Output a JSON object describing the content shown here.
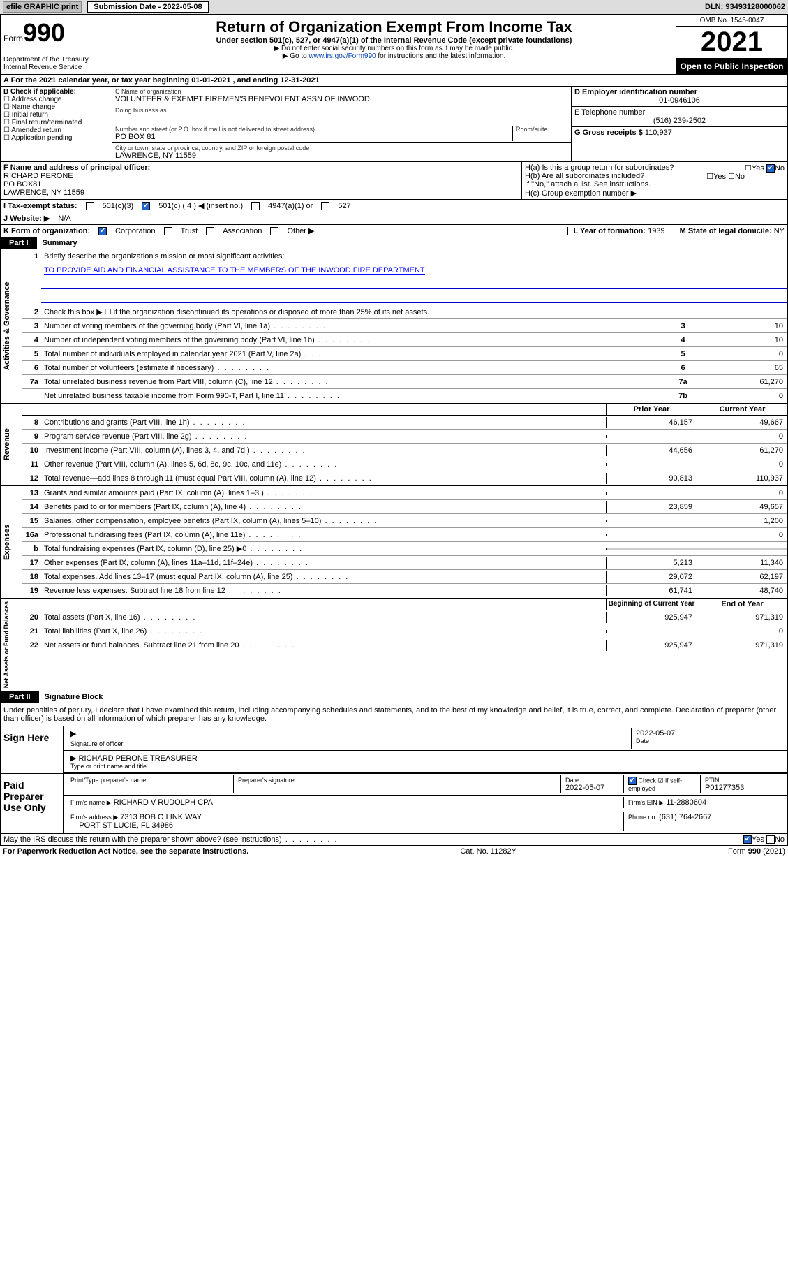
{
  "topbar": {
    "efile": "efile GRAPHIC print",
    "sub_label": "Submission Date - 2022-05-08",
    "dln": "DLN: 93493128000062"
  },
  "header": {
    "form_word": "Form",
    "form_num": "990",
    "dept": "Department of the Treasury\nInternal Revenue Service",
    "title": "Return of Organization Exempt From Income Tax",
    "sub": "Under section 501(c), 527, or 4947(a)(1) of the Internal Revenue Code (except private foundations)",
    "note1": "▶ Do not enter social security numbers on this form as it may be made public.",
    "note2_pre": "▶ Go to ",
    "note2_link": "www.irs.gov/Form990",
    "note2_post": " for instructions and the latest information.",
    "omb": "OMB No. 1545-0047",
    "year": "2021",
    "open": "Open to Public Inspection"
  },
  "row_a": "A For the 2021 calendar year, or tax year beginning 01-01-2021   , and ending 12-31-2021",
  "section_b": {
    "title": "B Check if applicable:",
    "opts": [
      "Address change",
      "Name change",
      "Initial return",
      "Final return/terminated",
      "Amended return",
      "Application pending"
    ]
  },
  "section_c": {
    "name_lbl": "C Name of organization",
    "name": "VOLUNTEER & EXEMPT FIREMEN'S BENEVOLENT ASSN OF INWOOD",
    "dba_lbl": "Doing business as",
    "addr_lbl": "Number and street (or P.O. box if mail is not delivered to street address)",
    "room_lbl": "Room/suite",
    "addr": "PO BOX 81",
    "city_lbl": "City or town, state or province, country, and ZIP or foreign postal code",
    "city": "LAWRENCE, NY  11559"
  },
  "section_d": {
    "lbl": "D Employer identification number",
    "val": "01-0946106"
  },
  "section_e": {
    "lbl": "E Telephone number",
    "val": "(516) 239-2502"
  },
  "section_g": {
    "lbl": "G Gross receipts $",
    "val": "110,937"
  },
  "section_f": {
    "lbl": "F  Name and address of principal officer:",
    "name": "RICHARD PERONE",
    "addr1": "PO BOX81",
    "addr2": "LAWRENCE, NY  11559"
  },
  "section_h": {
    "ha": "H(a)  Is this a group return for subordinates?",
    "ha_yes": "Yes",
    "ha_no": "No",
    "hb": "H(b)  Are all subordinates included?",
    "hb_yes": "Yes",
    "hb_no": "No",
    "hb_note": "If \"No,\" attach a list. See instructions.",
    "hc": "H(c)  Group exemption number ▶"
  },
  "row_i": {
    "lbl": "I   Tax-exempt status:",
    "o1": "501(c)(3)",
    "o2": "501(c) ( 4 ) ◀ (insert no.)",
    "o3": "4947(a)(1) or",
    "o4": "527"
  },
  "row_j": {
    "lbl": "J   Website: ▶",
    "val": "N/A"
  },
  "row_k": {
    "lbl": "K Form of organization:",
    "o1": "Corporation",
    "o2": "Trust",
    "o3": "Association",
    "o4": "Other ▶",
    "l_lbl": "L Year of formation:",
    "l_val": "1939",
    "m_lbl": "M State of legal domicile:",
    "m_val": "NY"
  },
  "part1": {
    "hdr": "Part I",
    "title": "Summary",
    "side_gov": "Activities & Governance",
    "side_rev": "Revenue",
    "side_exp": "Expenses",
    "side_net": "Net Assets or Fund Balances",
    "lines": {
      "l1": "Briefly describe the organization's mission or most significant activities:",
      "l1v": "TO PROVIDE AID AND FINANCIAL ASSISTANCE TO THE MEMBERS OF THE INWOOD FIRE DEPARTMENT",
      "l2": "Check this box ▶ ☐  if the organization discontinued its operations or disposed of more than 25% of its net assets.",
      "l3": "Number of voting members of the governing body (Part VI, line 1a)",
      "l4": "Number of independent voting members of the governing body (Part VI, line 1b)",
      "l5": "Total number of individuals employed in calendar year 2021 (Part V, line 2a)",
      "l6": "Total number of volunteers (estimate if necessary)",
      "l7a": "Total unrelated business revenue from Part VIII, column (C), line 12",
      "l7b": "Net unrelated business taxable income from Form 990-T, Part I, line 11"
    },
    "vals": {
      "l3": "10",
      "l4": "10",
      "l5": "0",
      "l6": "65",
      "l7a": "61,270",
      "l7b": "0"
    },
    "col_prior": "Prior Year",
    "col_curr": "Current Year",
    "rev": [
      {
        "n": "8",
        "d": "Contributions and grants (Part VIII, line 1h)",
        "p": "46,157",
        "c": "49,667"
      },
      {
        "n": "9",
        "d": "Program service revenue (Part VIII, line 2g)",
        "p": "",
        "c": "0"
      },
      {
        "n": "10",
        "d": "Investment income (Part VIII, column (A), lines 3, 4, and 7d )",
        "p": "44,656",
        "c": "61,270"
      },
      {
        "n": "11",
        "d": "Other revenue (Part VIII, column (A), lines 5, 6d, 8c, 9c, 10c, and 11e)",
        "p": "",
        "c": "0"
      },
      {
        "n": "12",
        "d": "Total revenue—add lines 8 through 11 (must equal Part VIII, column (A), line 12)",
        "p": "90,813",
        "c": "110,937"
      }
    ],
    "exp": [
      {
        "n": "13",
        "d": "Grants and similar amounts paid (Part IX, column (A), lines 1–3 )",
        "p": "",
        "c": "0"
      },
      {
        "n": "14",
        "d": "Benefits paid to or for members (Part IX, column (A), line 4)",
        "p": "23,859",
        "c": "49,657"
      },
      {
        "n": "15",
        "d": "Salaries, other compensation, employee benefits (Part IX, column (A), lines 5–10)",
        "p": "",
        "c": "1,200"
      },
      {
        "n": "16a",
        "d": "Professional fundraising fees (Part IX, column (A), line 11e)",
        "p": "",
        "c": "0"
      },
      {
        "n": "b",
        "d": "Total fundraising expenses (Part IX, column (D), line 25) ▶0",
        "p": "grey",
        "c": "grey"
      },
      {
        "n": "17",
        "d": "Other expenses (Part IX, column (A), lines 11a–11d, 11f–24e)",
        "p": "5,213",
        "c": "11,340"
      },
      {
        "n": "18",
        "d": "Total expenses. Add lines 13–17 (must equal Part IX, column (A), line 25)",
        "p": "29,072",
        "c": "62,197"
      },
      {
        "n": "19",
        "d": "Revenue less expenses. Subtract line 18 from line 12",
        "p": "61,741",
        "c": "48,740"
      }
    ],
    "col_beg": "Beginning of Current Year",
    "col_end": "End of Year",
    "net": [
      {
        "n": "20",
        "d": "Total assets (Part X, line 16)",
        "p": "925,947",
        "c": "971,319"
      },
      {
        "n": "21",
        "d": "Total liabilities (Part X, line 26)",
        "p": "",
        "c": "0"
      },
      {
        "n": "22",
        "d": "Net assets or fund balances. Subtract line 21 from line 20",
        "p": "925,947",
        "c": "971,319"
      }
    ]
  },
  "part2": {
    "hdr": "Part II",
    "title": "Signature Block",
    "decl": "Under penalties of perjury, I declare that I have examined this return, including accompanying schedules and statements, and to the best of my knowledge and belief, it is true, correct, and complete. Declaration of preparer (other than officer) is based on all information of which preparer has any knowledge.",
    "sign_here": "Sign Here",
    "sig_of": "Signature of officer",
    "date": "Date",
    "date_v": "2022-05-07",
    "name_title": "RICHARD PERONE  TREASURER",
    "type_name": "Type or print name and title",
    "paid": "Paid Preparer Use Only",
    "prep_name_lbl": "Print/Type preparer's name",
    "prep_sig_lbl": "Preparer's signature",
    "prep_date": "2022-05-07",
    "self_emp": "Check ☑ if self-employed",
    "ptin_lbl": "PTIN",
    "ptin": "P01277353",
    "firm_name_lbl": "Firm's name    ▶",
    "firm_name": "RICHARD V RUDOLPH CPA",
    "firm_ein_lbl": "Firm's EIN ▶",
    "firm_ein": "11-2880604",
    "firm_addr_lbl": "Firm's address ▶",
    "firm_addr1": "7313 BOB O LINK WAY",
    "firm_addr2": "PORT ST LUCIE, FL  34986",
    "phone_lbl": "Phone no.",
    "phone": "(631) 764-2667",
    "may_irs": "May the IRS discuss this return with the preparer shown above? (see instructions)",
    "yes": "Yes",
    "no": "No"
  },
  "footer": {
    "left": "For Paperwork Reduction Act Notice, see the separate instructions.",
    "mid": "Cat. No. 11282Y",
    "right": "Form 990 (2021)"
  }
}
